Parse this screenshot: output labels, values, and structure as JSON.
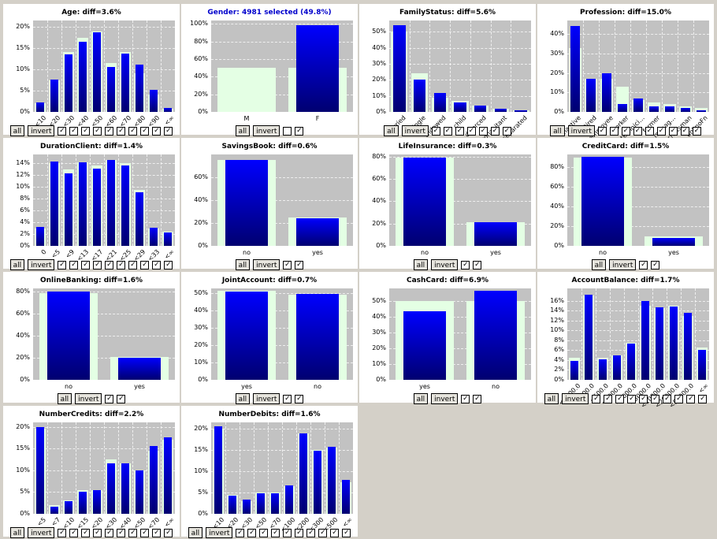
{
  "colors": {
    "background": "#d4d0c8",
    "panel": "#ffffff",
    "plot_bg": "#c2c2c2",
    "selected_bar": "#0000ff",
    "all_bar": "#e4ffe4",
    "selected_title": "#0000cc"
  },
  "buttons": {
    "all": "all",
    "invert": "invert"
  },
  "checkmark": "✓",
  "chart_data": [
    {
      "type": "bar",
      "title": "Age: diff=3.6%",
      "categories": [
        "<10",
        "<20",
        "<30",
        "<40",
        "<50",
        "<60",
        "<70",
        "<80",
        "<90",
        "<∞"
      ],
      "series": [
        {
          "name": "all",
          "values": [
            2,
            7.5,
            14,
            17.5,
            19,
            11.5,
            14,
            9,
            4,
            0.8
          ]
        },
        {
          "name": "selected",
          "values": [
            2.2,
            7.6,
            13.6,
            16.5,
            18.8,
            10.5,
            13.8,
            11.1,
            5.2,
            1
          ]
        }
      ],
      "yticks": [
        "0%",
        "5%",
        "10%",
        "15%",
        "20%"
      ],
      "ylim": [
        0,
        21.5
      ],
      "rotated": true,
      "checked": [
        true,
        true,
        true,
        true,
        true,
        true,
        true,
        true,
        true,
        true
      ]
    },
    {
      "type": "bar",
      "title": "Gender: 4981 selected (49.8%)",
      "selected_title": true,
      "categories": [
        "M",
        "F"
      ],
      "series": [
        {
          "name": "all",
          "values": [
            50,
            50
          ]
        },
        {
          "name": "selected",
          "values": [
            0,
            99
          ]
        }
      ],
      "yticks": [
        "0%",
        "20%",
        "40%",
        "60%",
        "80%",
        "100%"
      ],
      "ylim": [
        0,
        104
      ],
      "rotated": false,
      "checked": [
        false,
        true
      ]
    },
    {
      "type": "bar",
      "title": "FamilyStatus: diff=5.6%",
      "categories": [
        "married",
        "single",
        "widowed",
        "child",
        "divorced",
        "cohabitant",
        "separated"
      ],
      "series": [
        {
          "name": "all",
          "values": [
            50,
            24,
            9,
            7,
            4,
            2,
            1
          ]
        },
        {
          "name": "selected",
          "values": [
            54,
            20,
            12,
            6,
            4,
            2,
            1
          ]
        }
      ],
      "yticks": [
        "0%",
        "10%",
        "20%",
        "30%",
        "40%",
        "50%"
      ],
      "ylim": [
        0,
        57
      ],
      "rotated": true,
      "checked": [
        true,
        true,
        true,
        true,
        true,
        true,
        true
      ]
    },
    {
      "type": "bar",
      "title": "Profession: diff=15.0%",
      "categories": [
        "inactive",
        "retired",
        "employee",
        "worker",
        "technici…",
        "farmer",
        "manag…",
        "craftsman",
        "unknoFn"
      ],
      "series": [
        {
          "name": "all",
          "values": [
            33,
            17,
            17,
            13,
            6,
            5,
            4,
            3,
            2
          ]
        },
        {
          "name": "selected",
          "values": [
            44,
            17,
            20,
            4,
            7,
            3,
            3,
            2,
            1
          ]
        }
      ],
      "yticks": [
        "0%",
        "10%",
        "20%",
        "30%",
        "40%"
      ],
      "ylim": [
        0,
        47
      ],
      "rotated": true,
      "checked": [
        true,
        true,
        true,
        true,
        true,
        true,
        true,
        true,
        true
      ]
    },
    {
      "type": "bar",
      "title": "DurationClient: diff=1.4%",
      "categories": [
        "0",
        "<5",
        "<9",
        "<13",
        "<17",
        "<21",
        "<25",
        "<29",
        "<33",
        "<∞"
      ],
      "series": [
        {
          "name": "all",
          "values": [
            3,
            14,
            13,
            14.2,
            13.6,
            14.5,
            14,
            9.5,
            3,
            2.4
          ]
        },
        {
          "name": "selected",
          "values": [
            3.2,
            14.3,
            12.3,
            14.1,
            13.1,
            14.5,
            13.6,
            9.1,
            3.1,
            2.3
          ]
        }
      ],
      "yticks": [
        "0%",
        "2%",
        "4%",
        "6%",
        "8%",
        "10%",
        "12%",
        "14%"
      ],
      "ylim": [
        0,
        15.5
      ],
      "rotated": true,
      "checked": [
        true,
        true,
        true,
        true,
        true,
        true,
        true,
        true,
        true,
        true
      ]
    },
    {
      "type": "bar",
      "title": "SavingsBook: diff=0.6%",
      "categories": [
        "no",
        "yes"
      ],
      "series": [
        {
          "name": "all",
          "values": [
            75,
            25
          ]
        },
        {
          "name": "selected",
          "values": [
            75,
            24
          ]
        }
      ],
      "yticks": [
        "0%",
        "20%",
        "40%",
        "60%"
      ],
      "ylim": [
        0,
        80
      ],
      "rotated": false,
      "checked": [
        true,
        true
      ]
    },
    {
      "type": "bar",
      "title": "LifeInsurance: diff=0.3%",
      "categories": [
        "no",
        "yes"
      ],
      "series": [
        {
          "name": "all",
          "values": [
            79,
            21
          ]
        },
        {
          "name": "selected",
          "values": [
            79,
            21
          ]
        }
      ],
      "yticks": [
        "0%",
        "20%",
        "40%",
        "60%",
        "80%"
      ],
      "ylim": [
        0,
        82
      ],
      "rotated": false,
      "checked": [
        true,
        true
      ]
    },
    {
      "type": "bar",
      "title": "CreditCard: diff=1.5%",
      "categories": [
        "no",
        "yes"
      ],
      "series": [
        {
          "name": "all",
          "values": [
            90,
            10
          ]
        },
        {
          "name": "selected",
          "values": [
            91,
            8
          ]
        }
      ],
      "yticks": [
        "0%",
        "20%",
        "40%",
        "60%",
        "80%"
      ],
      "ylim": [
        0,
        93
      ],
      "rotated": false,
      "checked": [
        true,
        true
      ]
    },
    {
      "type": "bar",
      "title": "OnlineBanking: diff=1.6%",
      "categories": [
        "no",
        "yes"
      ],
      "series": [
        {
          "name": "all",
          "values": [
            79,
            21
          ]
        },
        {
          "name": "selected",
          "values": [
            80,
            20
          ]
        }
      ],
      "yticks": [
        "0%",
        "20%",
        "40%",
        "60%",
        "80%"
      ],
      "ylim": [
        0,
        83
      ],
      "rotated": false,
      "checked": [
        true,
        true
      ]
    },
    {
      "type": "bar",
      "title": "JointAccount: diff=0.7%",
      "categories": [
        "yes",
        "no"
      ],
      "series": [
        {
          "name": "all",
          "values": [
            51,
            49
          ]
        },
        {
          "name": "selected",
          "values": [
            50.5,
            49.5
          ]
        }
      ],
      "yticks": [
        "0%",
        "10%",
        "20%",
        "30%",
        "40%",
        "50%"
      ],
      "ylim": [
        0,
        52.5
      ],
      "rotated": false,
      "checked": [
        true,
        true
      ]
    },
    {
      "type": "bar",
      "title": "CashCard: diff=6.9%",
      "categories": [
        "yes",
        "no"
      ],
      "series": [
        {
          "name": "all",
          "values": [
            50,
            50
          ]
        },
        {
          "name": "selected",
          "values": [
            43.5,
            56.5
          ]
        }
      ],
      "yticks": [
        "0%",
        "10%",
        "20%",
        "30%",
        "40%",
        "50%"
      ],
      "ylim": [
        0,
        58
      ],
      "rotated": false,
      "checked": [
        true,
        true
      ]
    },
    {
      "type": "bar",
      "title": "AccountBalance: diff=1.7%",
      "categories": [
        "< -200.0",
        "<200.0",
        "<500.0",
        "<1000.0",
        "<2000.0",
        "<5000.0",
        "<10000.0",
        "<20000.0",
        "<50000.0",
        "<∞"
      ],
      "series": [
        {
          "name": "all",
          "values": [
            4.5,
            17,
            4.5,
            5,
            7.5,
            15,
            14.5,
            15,
            13,
            6.5
          ]
        },
        {
          "name": "selected",
          "values": [
            3.8,
            17.2,
            4.2,
            4.9,
            7.3,
            16,
            14.6,
            14.8,
            13.5,
            6
          ]
        }
      ],
      "yticks": [
        "0%",
        "2%",
        "4%",
        "6%",
        "8%",
        "10%",
        "12%",
        "14%",
        "16%"
      ],
      "ylim": [
        0,
        18.5
      ],
      "rotated": true,
      "checked": [
        true,
        true,
        true,
        true,
        true,
        true,
        true,
        true,
        true,
        true
      ]
    },
    {
      "type": "bar",
      "title": "NumberCredits: diff=2.2%",
      "categories": [
        "<5",
        "<7",
        "<10",
        "<15",
        "<20",
        "<30",
        "<40",
        "<50",
        "<70",
        "<∞"
      ],
      "series": [
        {
          "name": "all",
          "values": [
            19.5,
            2,
            3,
            5.5,
            5.5,
            12.5,
            11.5,
            10,
            14.5,
            17
          ]
        },
        {
          "name": "selected",
          "values": [
            20,
            1.6,
            2.9,
            5,
            5.5,
            11.5,
            11.5,
            10,
            15.5,
            17.5
          ]
        }
      ],
      "yticks": [
        "0%",
        "5%",
        "10%",
        "15%",
        "20%"
      ],
      "ylim": [
        0,
        21
      ],
      "rotated": true,
      "checked": [
        true,
        true,
        true,
        true,
        true,
        true,
        true,
        true,
        true,
        true
      ]
    },
    {
      "type": "bar",
      "title": "NumberDebits: diff=1.6%",
      "categories": [
        "<10",
        "<20",
        "<30",
        "<50",
        "<70",
        "<100",
        "<200",
        "<300",
        "<500",
        "<∞"
      ],
      "series": [
        {
          "name": "all",
          "values": [
            20,
            4.5,
            3,
            5,
            5,
            6.5,
            19,
            15,
            15.5,
            7.5
          ]
        },
        {
          "name": "selected",
          "values": [
            20.5,
            4.3,
            3.3,
            4.9,
            4.8,
            6.6,
            19,
            14.8,
            15.7,
            7.9
          ]
        }
      ],
      "yticks": [
        "0%",
        "5%",
        "10%",
        "15%",
        "20%"
      ],
      "ylim": [
        0,
        21.5
      ],
      "rotated": true,
      "checked": [
        true,
        true,
        true,
        true,
        true,
        true,
        true,
        true,
        true,
        true
      ]
    }
  ]
}
